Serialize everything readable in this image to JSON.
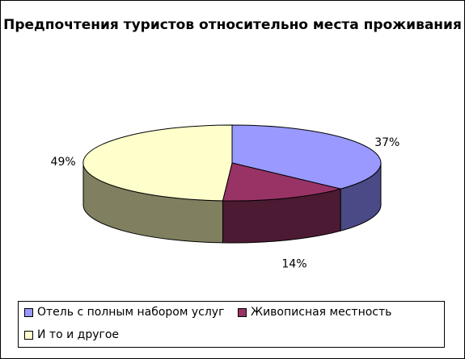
{
  "chart_data": {
    "type": "pie",
    "title": "Предпочтения туристов относительно места проживания",
    "labels": [
      "Отель с полным набором услуг",
      "Живописная местность",
      "И то и другое"
    ],
    "values": [
      37,
      14,
      49
    ],
    "data_labels": [
      "37%",
      "14%",
      "49%"
    ],
    "legend_position": "bottom",
    "colors_top": [
      "#9999ff",
      "#993366",
      "#ffffcc"
    ],
    "colors_side": [
      "#4a4a86",
      "#4c1a33",
      "#808060"
    ]
  }
}
